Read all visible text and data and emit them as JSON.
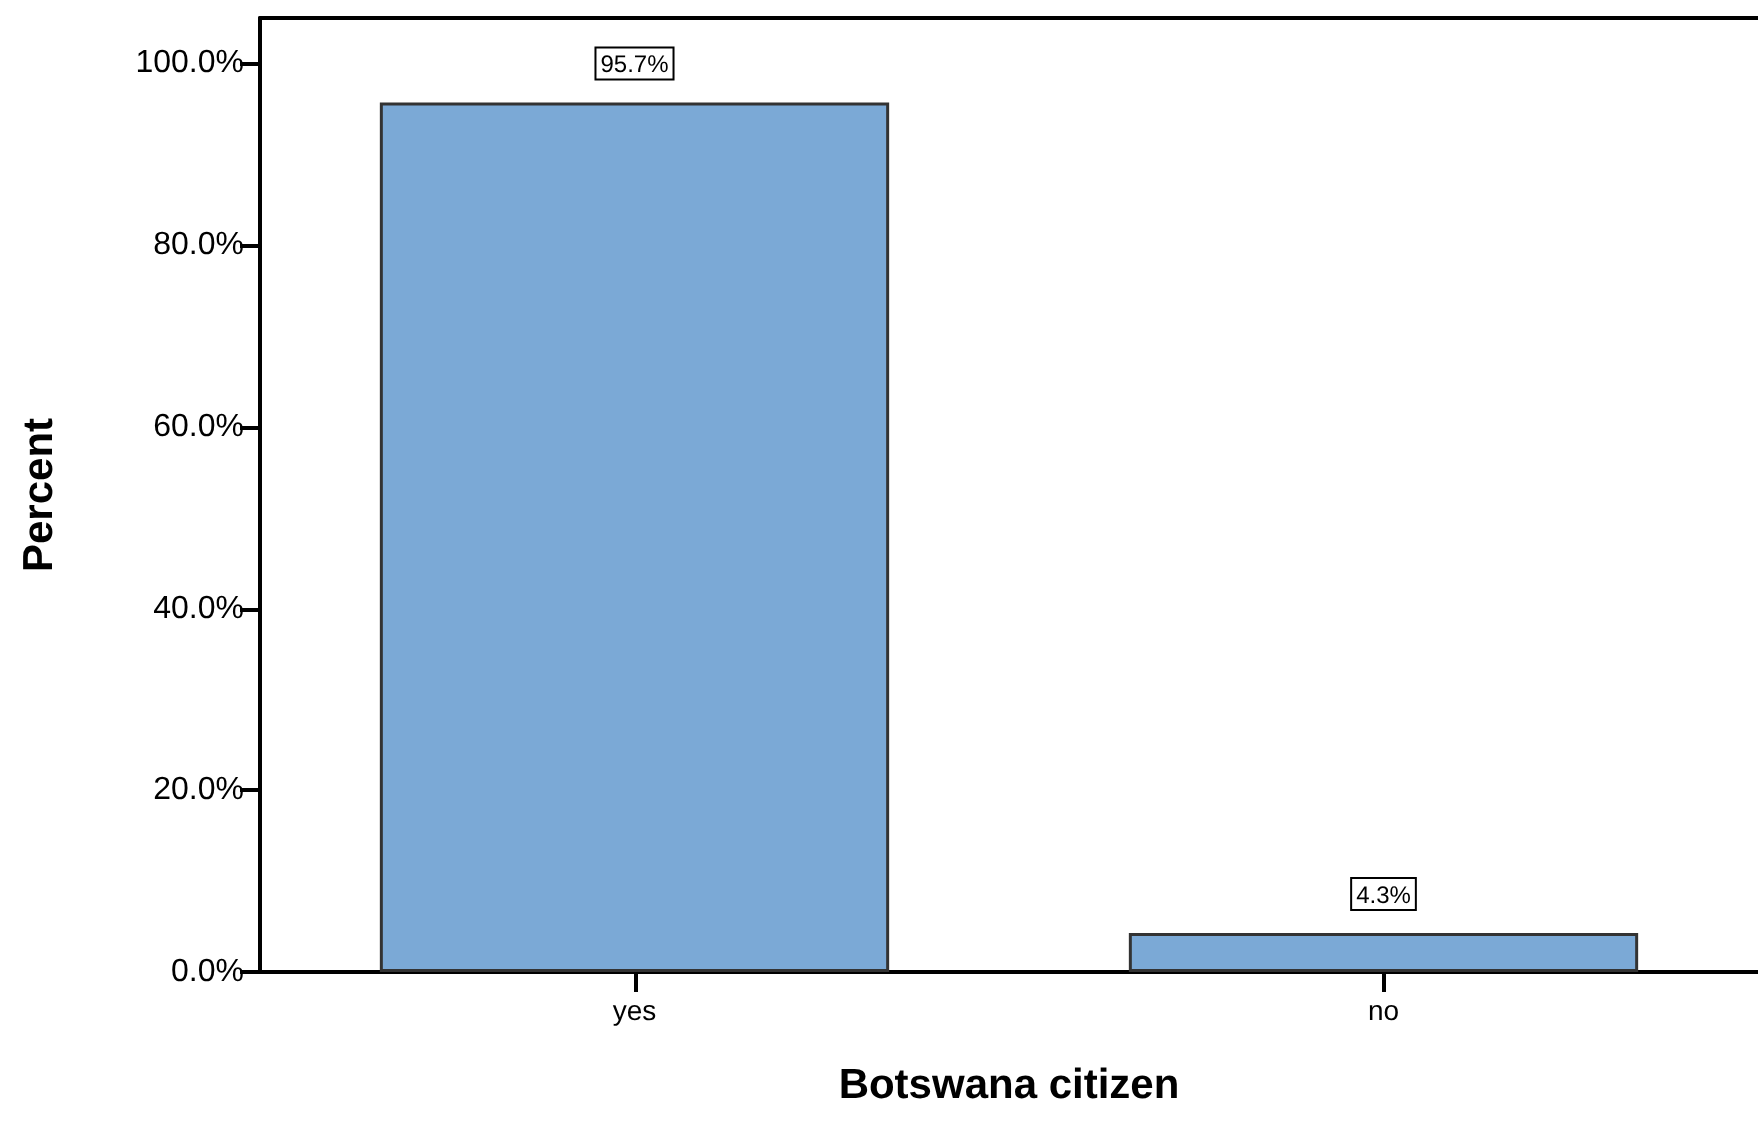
{
  "chart_data": {
    "type": "bar",
    "xlabel": "Botswana citizen",
    "ylabel": "Percent",
    "categories": [
      "yes",
      "no"
    ],
    "values": [
      95.7,
      4.3
    ],
    "value_labels": [
      "95.7%",
      "4.3%"
    ],
    "color": "#7ba9d6",
    "ylim": [
      0,
      105
    ],
    "yticks": [
      {
        "value": 0,
        "label": "0.0%"
      },
      {
        "value": 20,
        "label": "20.0%"
      },
      {
        "value": 40,
        "label": "40.0%"
      },
      {
        "value": 60,
        "label": "60.0%"
      },
      {
        "value": 80,
        "label": "80.0%"
      },
      {
        "value": 100,
        "label": "100.0%"
      }
    ],
    "grid": false
  }
}
